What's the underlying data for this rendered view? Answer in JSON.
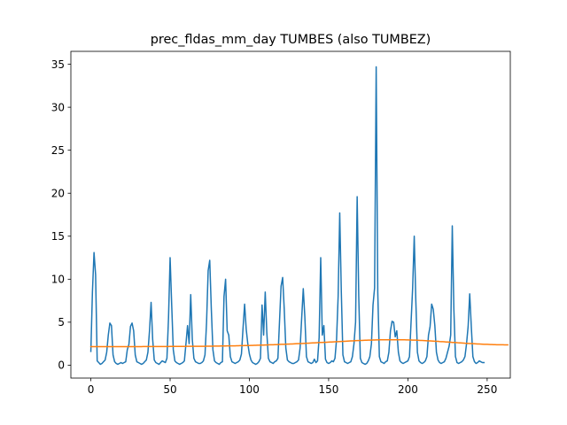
{
  "chart_data": {
    "type": "line",
    "title": "prec_fldas_mm_day TUMBES (also TUMBEZ)",
    "xlabel": "",
    "ylabel": "",
    "xlim": [
      -12.6,
      264.6
    ],
    "ylim": [
      -1.5,
      36.5
    ],
    "xticks": [
      0,
      50,
      100,
      150,
      200,
      250
    ],
    "yticks": [
      0,
      5,
      10,
      15,
      20,
      25,
      30,
      35
    ],
    "grid": false,
    "legend": "none",
    "series": [
      {
        "color": "#1f77b4",
        "values": [
          1.6,
          8.5,
          13.1,
          10.5,
          0.5,
          0.3,
          0.1,
          0.2,
          0.4,
          0.6,
          1.5,
          3.5,
          4.9,
          4.6,
          1.2,
          0.4,
          0.2,
          0.1,
          0.2,
          0.3,
          0.2,
          0.3,
          0.4,
          1.8,
          2.4,
          4.5,
          4.9,
          4.0,
          1.2,
          0.4,
          0.3,
          0.2,
          0.1,
          0.2,
          0.4,
          0.6,
          1.5,
          4.0,
          7.3,
          3.0,
          0.6,
          0.3,
          0.2,
          0.1,
          0.3,
          0.5,
          0.4,
          0.3,
          0.8,
          5.5,
          12.5,
          7.0,
          1.8,
          0.5,
          0.3,
          0.2,
          0.1,
          0.2,
          0.3,
          0.5,
          2.5,
          4.6,
          2.5,
          8.2,
          3.0,
          0.8,
          0.4,
          0.3,
          0.2,
          0.2,
          0.3,
          0.5,
          1.2,
          5.0,
          11.0,
          12.2,
          6.5,
          1.8,
          0.5,
          0.3,
          0.2,
          0.1,
          0.3,
          0.4,
          8.0,
          10.0,
          4.0,
          3.5,
          1.0,
          0.4,
          0.3,
          0.2,
          0.3,
          0.4,
          0.6,
          1.3,
          4.3,
          7.1,
          4.2,
          2.5,
          1.3,
          0.6,
          0.3,
          0.2,
          0.1,
          0.2,
          0.4,
          0.8,
          7.0,
          3.5,
          8.5,
          3.8,
          0.8,
          0.4,
          0.3,
          0.2,
          0.4,
          0.5,
          0.8,
          5.0,
          9.2,
          10.2,
          6.5,
          2.0,
          0.6,
          0.4,
          0.3,
          0.2,
          0.2,
          0.3,
          0.4,
          0.6,
          2.0,
          5.5,
          8.9,
          5.6,
          1.0,
          0.4,
          0.3,
          0.2,
          0.3,
          0.7,
          0.3,
          0.5,
          3.2,
          12.5,
          3.5,
          4.6,
          0.7,
          0.3,
          0.2,
          0.3,
          0.5,
          0.4,
          0.8,
          3.0,
          8.0,
          17.7,
          8.5,
          1.2,
          0.4,
          0.3,
          0.2,
          0.3,
          0.4,
          1.0,
          2.5,
          5.0,
          19.6,
          8.0,
          0.8,
          0.3,
          0.2,
          0.1,
          0.2,
          0.5,
          1.0,
          2.5,
          7.0,
          9.0,
          34.7,
          8.5,
          1.0,
          0.4,
          0.3,
          0.2,
          0.4,
          0.5,
          1.5,
          4.0,
          5.1,
          5.0,
          3.3,
          4.0,
          1.5,
          0.5,
          0.3,
          0.2,
          0.3,
          0.4,
          0.5,
          1.0,
          5.0,
          9.0,
          15.0,
          7.5,
          1.5,
          0.5,
          0.3,
          0.2,
          0.3,
          0.5,
          1.0,
          3.5,
          4.5,
          7.1,
          6.5,
          4.6,
          1.5,
          0.6,
          0.3,
          0.2,
          0.3,
          0.4,
          0.8,
          1.5,
          2.2,
          3.5,
          16.2,
          6.5,
          1.0,
          0.3,
          0.2,
          0.3,
          0.4,
          0.6,
          1.0,
          2.5,
          4.5,
          8.3,
          4.5,
          1.0,
          0.4,
          0.2,
          0.3,
          0.5,
          0.4,
          0.3,
          0.3
        ]
      },
      {
        "color": "#ff7f0e",
        "values": [
          2.15,
          2.15,
          2.15,
          2.15,
          2.15,
          2.15,
          2.15,
          2.15,
          2.15,
          2.15,
          2.15,
          2.15,
          2.16,
          2.16,
          2.16,
          2.16,
          2.16,
          2.16,
          2.16,
          2.16,
          2.16,
          2.16,
          2.16,
          2.16,
          2.16,
          2.16,
          2.16,
          2.16,
          2.16,
          2.16,
          2.16,
          2.16,
          2.16,
          2.17,
          2.17,
          2.17,
          2.17,
          2.17,
          2.17,
          2.17,
          2.17,
          2.17,
          2.17,
          2.17,
          2.17,
          2.17,
          2.17,
          2.17,
          2.17,
          2.17,
          2.18,
          2.18,
          2.18,
          2.18,
          2.18,
          2.18,
          2.18,
          2.18,
          2.18,
          2.18,
          2.19,
          2.19,
          2.19,
          2.19,
          2.19,
          2.19,
          2.19,
          2.2,
          2.2,
          2.2,
          2.2,
          2.2,
          2.2,
          2.21,
          2.21,
          2.21,
          2.21,
          2.21,
          2.22,
          2.22,
          2.22,
          2.22,
          2.23,
          2.23,
          2.23,
          2.23,
          2.24,
          2.24,
          2.24,
          2.25,
          2.25,
          2.25,
          2.26,
          2.26,
          2.27,
          2.27,
          2.27,
          2.28,
          2.28,
          2.29,
          2.29,
          2.3,
          2.3,
          2.31,
          2.31,
          2.32,
          2.32,
          2.33,
          2.33,
          2.34,
          2.35,
          2.35,
          2.36,
          2.37,
          2.37,
          2.38,
          2.39,
          2.39,
          2.4,
          2.41,
          2.42,
          2.42,
          2.43,
          2.44,
          2.45,
          2.45,
          2.46,
          2.47,
          2.48,
          2.49,
          2.5,
          2.5,
          2.51,
          2.52,
          2.53,
          2.54,
          2.55,
          2.56,
          2.57,
          2.58,
          2.59,
          2.6,
          2.61,
          2.62,
          2.63,
          2.64,
          2.65,
          2.66,
          2.66,
          2.67,
          2.68,
          2.69,
          2.7,
          2.71,
          2.72,
          2.73,
          2.74,
          2.75,
          2.76,
          2.77,
          2.78,
          2.79,
          2.8,
          2.81,
          2.82,
          2.83,
          2.84,
          2.85,
          2.86,
          2.86,
          2.87,
          2.88,
          2.89,
          2.9,
          2.9,
          2.91,
          2.92,
          2.92,
          2.93,
          2.93,
          2.94,
          2.94,
          2.95,
          2.95,
          2.95,
          2.96,
          2.96,
          2.96,
          2.96,
          2.96,
          2.96,
          2.96,
          2.96,
          2.96,
          2.96,
          2.96,
          2.95,
          2.95,
          2.95,
          2.94,
          2.94,
          2.93,
          2.93,
          2.92,
          2.91,
          2.91,
          2.9,
          2.89,
          2.88,
          2.87,
          2.86,
          2.85,
          2.84,
          2.83,
          2.82,
          2.81,
          2.8,
          2.79,
          2.78,
          2.77,
          2.75,
          2.74,
          2.73,
          2.72,
          2.7,
          2.69,
          2.68,
          2.67,
          2.65,
          2.64,
          2.63,
          2.62,
          2.6,
          2.59,
          2.58,
          2.57,
          2.55,
          2.54,
          2.53,
          2.52,
          2.51,
          2.5,
          2.49,
          2.48,
          2.47,
          2.46,
          2.45,
          2.44,
          2.43,
          2.42,
          2.42,
          2.41,
          2.4,
          2.4,
          2.39,
          2.39,
          2.38,
          2.38,
          2.37,
          2.37,
          2.37,
          2.36,
          2.36,
          2.36
        ]
      }
    ]
  }
}
